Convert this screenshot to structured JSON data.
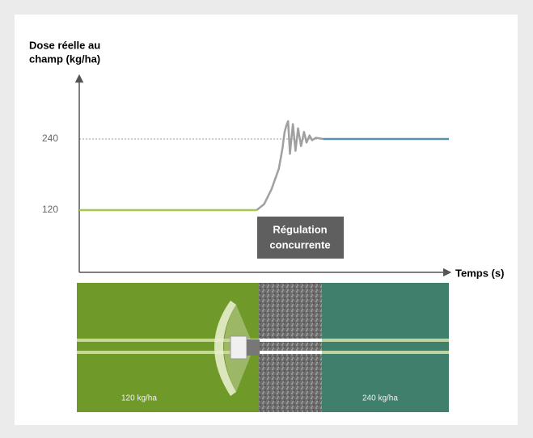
{
  "chart_data": {
    "type": "line",
    "ylabel": [
      "Dose réelle au",
      "champ (kg/ha)"
    ],
    "xlabel": "Temps (s)",
    "annotation": [
      "Régulation",
      "concurrente"
    ],
    "xlim": [
      0,
      100
    ],
    "ylim": [
      15,
      345
    ],
    "yticks": [
      120,
      240
    ],
    "series": [
      {
        "color": "#a8c64a",
        "x": [
          0,
          48
        ],
        "values": [
          120,
          120
        ]
      },
      {
        "color": "#a0a0a0",
        "x": [
          48,
          50,
          52,
          54,
          55,
          55.5,
          56,
          56.5,
          57,
          57.8,
          58.5,
          59.2,
          60,
          60.8,
          61.5,
          62.3,
          63,
          64,
          66
        ],
        "values": [
          120,
          130,
          155,
          190,
          225,
          250,
          262,
          270,
          215,
          265,
          220,
          258,
          228,
          252,
          234,
          246,
          238,
          242,
          240
        ]
      },
      {
        "color": "#5b8fb0",
        "x": [
          66,
          100
        ],
        "values": [
          240,
          240
        ]
      }
    ]
  },
  "field": {
    "labels": [
      "120 kg/ha",
      "240 kg/ha"
    ]
  }
}
